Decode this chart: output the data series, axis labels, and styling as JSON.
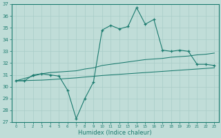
{
  "x": [
    0,
    1,
    2,
    3,
    4,
    5,
    6,
    7,
    8,
    9,
    10,
    11,
    12,
    13,
    14,
    15,
    16,
    17,
    18,
    19,
    20,
    21,
    22,
    23
  ],
  "y_main": [
    30.5,
    30.5,
    31.0,
    31.1,
    31.0,
    30.9,
    29.7,
    27.3,
    29.0,
    30.4,
    34.8,
    35.2,
    34.9,
    35.1,
    36.7,
    35.3,
    35.7,
    33.1,
    33.0,
    33.1,
    33.0,
    31.9,
    31.9,
    31.8
  ],
  "y_trend1": [
    30.5,
    30.7,
    30.9,
    31.1,
    31.2,
    31.25,
    31.3,
    31.35,
    31.5,
    31.6,
    31.8,
    31.9,
    32.0,
    32.1,
    32.2,
    32.3,
    32.35,
    32.4,
    32.5,
    32.55,
    32.6,
    32.7,
    32.75,
    32.85
  ],
  "y_trend2": [
    30.5,
    30.52,
    30.54,
    30.56,
    30.6,
    30.65,
    30.7,
    30.75,
    30.82,
    30.88,
    30.95,
    31.0,
    31.05,
    31.1,
    31.15,
    31.2,
    31.25,
    31.3,
    31.35,
    31.4,
    31.45,
    31.5,
    31.55,
    31.6
  ],
  "color": "#1a7a6e",
  "bg_color": "#c0ddd8",
  "grid_color": "#a8ccc8",
  "xlabel": "Humidex (Indice chaleur)",
  "ylim": [
    27,
    37
  ],
  "xlim": [
    -0.5,
    23.5
  ],
  "yticks": [
    27,
    28,
    29,
    30,
    31,
    32,
    33,
    34,
    35,
    36,
    37
  ],
  "xticks": [
    0,
    1,
    2,
    3,
    4,
    5,
    6,
    7,
    8,
    9,
    10,
    11,
    12,
    13,
    14,
    15,
    16,
    17,
    18,
    19,
    20,
    21,
    22,
    23
  ]
}
